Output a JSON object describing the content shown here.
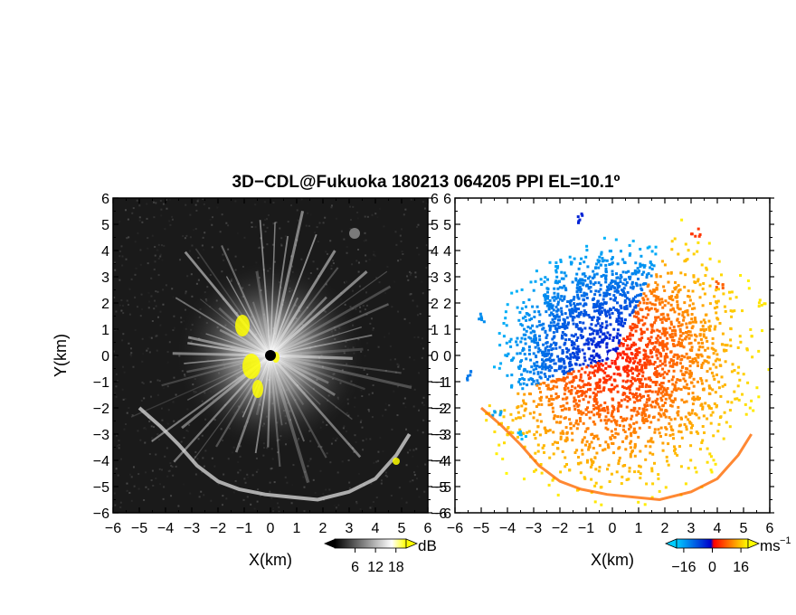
{
  "chart_data": {
    "title": "3D−CDL@Fukuoka 180213 064205 PPI EL=10.1º",
    "panels": [
      {
        "type": "heatmap",
        "name": "reflectivity-ppi",
        "xlabel": "X(km)",
        "ylabel": "Y(km)",
        "xlim": [
          -6,
          6
        ],
        "ylim": [
          -6,
          6
        ],
        "x_ticks": [
          "−6",
          "−5",
          "−4",
          "−3",
          "−2",
          "−1",
          "0",
          "1",
          "2",
          "3",
          "4",
          "5",
          "6"
        ],
        "y_ticks": [
          "6",
          "5",
          "4",
          "3",
          "2",
          "1",
          "0",
          "−1",
          "−2",
          "−3",
          "−4",
          "−5",
          "−6"
        ],
        "colorbar": {
          "unit": "dB",
          "ticks": [
            "6",
            "12",
            "18"
          ],
          "range": [
            0,
            21
          ],
          "colors": [
            "#000000",
            "#ffffff",
            "#ffff00"
          ]
        },
        "highlight_color": "#ffff00"
      },
      {
        "type": "heatmap",
        "name": "doppler-velocity-ppi",
        "xlabel": "X(km)",
        "xlim": [
          -6,
          6
        ],
        "ylim": [
          -6,
          6
        ],
        "x_ticks": [
          "−6",
          "−5",
          "−4",
          "−3",
          "−2",
          "−1",
          "0",
          "1",
          "2",
          "3",
          "4",
          "5",
          "6"
        ],
        "y_ticks": [
          "6",
          "5",
          "4",
          "3",
          "2",
          "1",
          "0",
          "−1",
          "−2",
          "−3",
          "−4",
          "−5",
          "−6"
        ],
        "colorbar": {
          "unit": "ms",
          "unit_exponent": "−1",
          "ticks": [
            "−16",
            "0",
            "16"
          ],
          "range": [
            -20,
            20
          ],
          "colors": [
            "#00ccff",
            "#0000cc",
            "#ff0000",
            "#ffff00"
          ]
        }
      }
    ]
  }
}
